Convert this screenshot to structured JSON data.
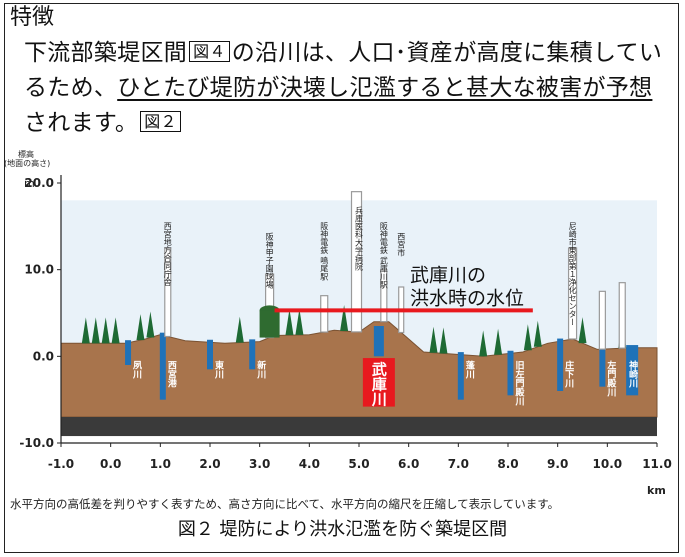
{
  "heading": "特徴",
  "body": {
    "seg1": "下流部築堤区間",
    "figref1": "図４",
    "seg2": "の沿川は、人口･資産が高度に集積しているため、",
    "seg3_underlined": "ひとたび堤防が決壊し氾濫すると甚大な被害が予想",
    "seg4": "されます。",
    "figref2": "図２"
  },
  "chart_data": {
    "type": "diagram",
    "title": "",
    "ylabel_line1": "標高",
    "ylabel_line2": "(地面の高さ)",
    "yunit": "m",
    "xunit": "km",
    "xlim": [
      -1.0,
      11.0
    ],
    "ylim": [
      -10.0,
      20.0
    ],
    "x_ticks": [
      "-1.0",
      "0.0",
      "1.0",
      "2.0",
      "3.0",
      "4.0",
      "5.0",
      "6.0",
      "7.0",
      "8.0",
      "9.0",
      "10.0",
      "11.0"
    ],
    "y_ticks": [
      {
        "value": 20.0,
        "label": "20.0"
      },
      {
        "value": 10.0,
        "label": "10.0"
      },
      {
        "value": 0.0,
        "label": "0.0"
      },
      {
        "value": -10.0,
        "label": "-10.0"
      }
    ],
    "flood_level_m": 5.3,
    "flood_level_range_km": [
      3.3,
      8.5
    ],
    "flood_level_label_line1": "武庫川の",
    "flood_level_label_line2": "洪水時の水位",
    "highlight_river": {
      "label": "武庫川",
      "x": 5.4
    },
    "ground_profile": [
      [
        -1.0,
        1.5
      ],
      [
        0.3,
        1.5
      ],
      [
        0.7,
        2.0
      ],
      [
        1.0,
        2.5
      ],
      [
        1.5,
        1.8
      ],
      [
        2.3,
        1.5
      ],
      [
        3.0,
        1.7
      ],
      [
        3.3,
        2.4
      ],
      [
        4.0,
        2.5
      ],
      [
        4.5,
        3.0
      ],
      [
        5.0,
        2.8
      ],
      [
        5.3,
        4.0
      ],
      [
        5.6,
        4.0
      ],
      [
        5.8,
        3.0
      ],
      [
        6.3,
        0.5
      ],
      [
        7.5,
        0.0
      ],
      [
        8.3,
        0.5
      ],
      [
        8.8,
        1.5
      ],
      [
        9.3,
        2.0
      ],
      [
        9.8,
        0.8
      ],
      [
        10.5,
        1.0
      ],
      [
        11.0,
        1.0
      ]
    ],
    "rivers": [
      {
        "label": "夙川",
        "x": 0.35,
        "bottom": -1.0
      },
      {
        "label": "西宮港",
        "x": 1.05,
        "bottom": -5.0
      },
      {
        "label": "東川",
        "x": 2.0,
        "bottom": -1.5
      },
      {
        "label": "新川",
        "x": 2.85,
        "bottom": -1.5
      },
      {
        "label": "武庫川",
        "x": 5.4,
        "bottom": 0.0
      },
      {
        "label": "蓬川",
        "x": 7.05,
        "bottom": -5.0
      },
      {
        "label": "旧左門殿川",
        "x": 8.05,
        "bottom": -4.5
      },
      {
        "label": "庄下川",
        "x": 9.05,
        "bottom": -4.0
      },
      {
        "label": "左門殿川",
        "x": 9.9,
        "bottom": -3.5
      },
      {
        "label": "神崎川",
        "x": 10.5,
        "bottom": -4.5
      }
    ],
    "landmarks": [
      {
        "label": "西宮地方合同庁舎",
        "x": 1.15
      },
      {
        "label": "阪神甲子園球場",
        "x": 3.2
      },
      {
        "label": "阪神電鉄 鳴尾駅",
        "x": 4.3
      },
      {
        "label": "兵庫医科大学病院",
        "x": 5.0
      },
      {
        "label": "阪神電鉄 武庫川駅",
        "x": 5.5
      },
      {
        "label": "西宮市",
        "x": 5.85
      },
      {
        "label": "尼崎市東部第１浄化センター",
        "x": 9.3
      }
    ]
  },
  "note": "水平方向の高低差を判りやすく表すため、高さ方向に比べて、水平方向の縮尺を圧縮して表示しています。",
  "caption": "図２ 堤防により洪水氾濫を防ぐ築堤区間",
  "colors": {
    "sky": "#cfe3f2",
    "ground": "#a8744c",
    "ground_dark": "#7a5232",
    "base": "#3a3a3a",
    "water": "#1f72b8",
    "flood_line": "#e8191e",
    "tree": "#1e6a34",
    "building": "#9a9a9a"
  }
}
